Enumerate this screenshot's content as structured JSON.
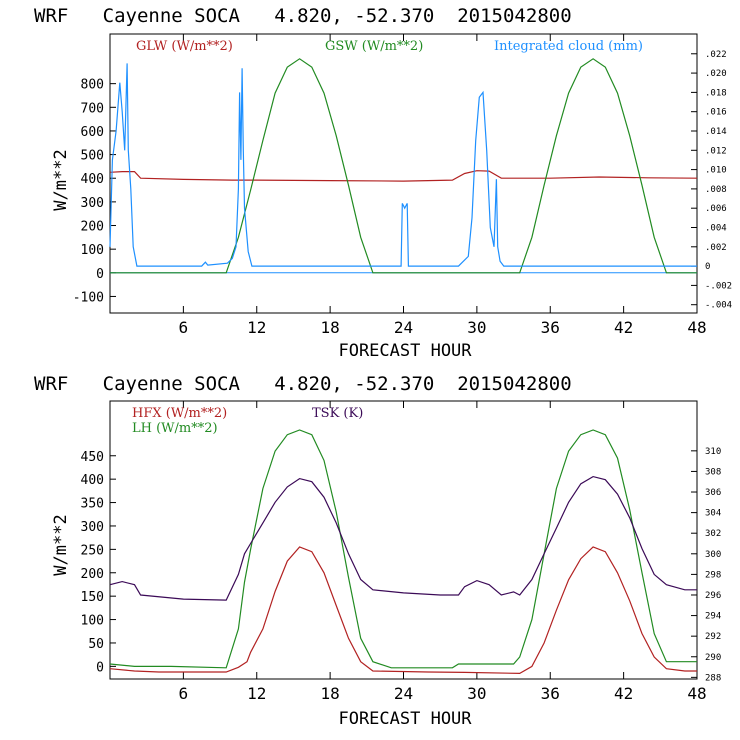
{
  "chart_data": [
    {
      "type": "line",
      "title": "WRF   Cayenne SOCA   4.820, -52.370  2015042800",
      "xlabel": "FORECAST HOUR",
      "ylabel": "W/m**2",
      "xlim": [
        0,
        48
      ],
      "ylim": [
        -170,
        1010
      ],
      "y2lim": [
        -0.00486,
        0.02405
      ],
      "xticks": [
        "6",
        "12",
        "18",
        "24",
        "30",
        "36",
        "42",
        "48"
      ],
      "yticks": [
        "-100",
        "0",
        "100",
        "200",
        "300",
        "400",
        "500",
        "600",
        "700",
        "800"
      ],
      "y2ticks": [
        "-.004",
        "-.002",
        "0",
        ".002",
        ".004",
        ".006",
        ".008",
        ".010",
        ".012",
        ".014",
        ".016",
        ".018",
        ".020",
        ".022"
      ],
      "series": [
        {
          "name": "GLW (W/m**2)",
          "color": "#b22222",
          "axis": "left",
          "points": [
            [
              0,
              425
            ],
            [
              1,
              428
            ],
            [
              2,
              428
            ],
            [
              2.5,
              400
            ],
            [
              6,
              395
            ],
            [
              10,
              392
            ],
            [
              12,
              392
            ],
            [
              18,
              390
            ],
            [
              24,
              388
            ],
            [
              28,
              392
            ],
            [
              29,
              420
            ],
            [
              30,
              432
            ],
            [
              31,
              430
            ],
            [
              32,
              400
            ],
            [
              36,
              400
            ],
            [
              40,
              405
            ],
            [
              44,
              402
            ],
            [
              48,
              400
            ]
          ]
        },
        {
          "name": "GSW (W/m**2)",
          "color": "#228b22",
          "axis": "left",
          "points": [
            [
              0,
              0
            ],
            [
              9.5,
              0
            ],
            [
              10.5,
              150
            ],
            [
              11.5,
              350
            ],
            [
              12.5,
              560
            ],
            [
              13.5,
              760
            ],
            [
              14.5,
              870
            ],
            [
              15.5,
              905
            ],
            [
              16.5,
              870
            ],
            [
              17.5,
              760
            ],
            [
              18.5,
              580
            ],
            [
              19.5,
              370
            ],
            [
              20.5,
              150
            ],
            [
              21.5,
              0
            ],
            [
              33.5,
              0
            ],
            [
              34.5,
              150
            ],
            [
              35.5,
              370
            ],
            [
              36.5,
              580
            ],
            [
              37.5,
              760
            ],
            [
              38.5,
              870
            ],
            [
              39.5,
              905
            ],
            [
              40.5,
              870
            ],
            [
              41.5,
              760
            ],
            [
              42.5,
              580
            ],
            [
              43.5,
              370
            ],
            [
              44.5,
              150
            ],
            [
              45.5,
              0
            ],
            [
              48,
              0
            ]
          ]
        },
        {
          "name": "Integrated cloud (mm)",
          "color": "#1e90ff",
          "axis": "right",
          "points": [
            [
              0,
              0.002
            ],
            [
              0.2,
              0.011
            ],
            [
              0.5,
              0.014
            ],
            [
              0.8,
              0.019
            ],
            [
              1.0,
              0.016
            ],
            [
              1.2,
              0.012
            ],
            [
              1.4,
              0.021
            ],
            [
              1.5,
              0.012
            ],
            [
              1.7,
              0.008
            ],
            [
              1.9,
              0.002
            ],
            [
              2.2,
              0
            ],
            [
              7.5,
              0
            ],
            [
              7.8,
              0.0004
            ],
            [
              8.0,
              0.0001
            ],
            [
              9.6,
              0.0003
            ],
            [
              10.0,
              0.0008
            ],
            [
              10.3,
              0.002
            ],
            [
              10.5,
              0.008
            ],
            [
              10.6,
              0.018
            ],
            [
              10.7,
              0.011
            ],
            [
              10.8,
              0.0205
            ],
            [
              10.9,
              0.012
            ],
            [
              11.0,
              0.006
            ],
            [
              11.3,
              0.0015
            ],
            [
              11.6,
              0
            ],
            [
              23.8,
              0
            ],
            [
              23.9,
              0.0065
            ],
            [
              24.1,
              0.006
            ],
            [
              24.3,
              0.0065
            ],
            [
              24.4,
              0
            ],
            [
              28.5,
              0
            ],
            [
              29.3,
              0.001
            ],
            [
              29.6,
              0.005
            ],
            [
              29.9,
              0.013
            ],
            [
              30.2,
              0.0175
            ],
            [
              30.5,
              0.018
            ],
            [
              30.8,
              0.012
            ],
            [
              31.1,
              0.004
            ],
            [
              31.4,
              0.002
            ],
            [
              31.6,
              0.009
            ],
            [
              31.7,
              0.002
            ],
            [
              31.9,
              0.0005
            ],
            [
              32.2,
              0
            ],
            [
              48,
              0
            ]
          ]
        }
      ]
    },
    {
      "type": "line",
      "title": "WRF   Cayenne SOCA   4.820, -52.370  2015042800",
      "xlabel": "FORECAST HOUR",
      "ylabel": "W/m**2",
      "xlim": [
        0,
        48
      ],
      "ylim": [
        -27,
        567
      ],
      "y2lim": [
        287.84,
        314.84
      ],
      "xticks": [
        "6",
        "12",
        "18",
        "24",
        "30",
        "36",
        "42",
        "48"
      ],
      "yticks": [
        "0",
        "50",
        "100",
        "150",
        "200",
        "250",
        "300",
        "350",
        "400",
        "450"
      ],
      "y2ticks": [
        "288",
        "290",
        "292",
        "294",
        "296",
        "298",
        "300",
        "302",
        "304",
        "306",
        "308",
        "310"
      ],
      "series": [
        {
          "name": "HFX (W/m**2)",
          "color": "#b22222",
          "axis": "left",
          "points": [
            [
              0,
              -5
            ],
            [
              2,
              -10
            ],
            [
              4,
              -12
            ],
            [
              9.5,
              -12
            ],
            [
              10.5,
              -2
            ],
            [
              11.2,
              10
            ],
            [
              11.5,
              30
            ],
            [
              12.5,
              80
            ],
            [
              13.5,
              160
            ],
            [
              14.5,
              225
            ],
            [
              15.5,
              255
            ],
            [
              16.5,
              245
            ],
            [
              17.5,
              200
            ],
            [
              18.5,
              130
            ],
            [
              19.5,
              60
            ],
            [
              20.5,
              10
            ],
            [
              21.5,
              -10
            ],
            [
              26,
              -12
            ],
            [
              29,
              -13
            ],
            [
              33.5,
              -15
            ],
            [
              34.5,
              0
            ],
            [
              35.5,
              50
            ],
            [
              36.5,
              120
            ],
            [
              37.5,
              185
            ],
            [
              38.5,
              230
            ],
            [
              39.5,
              255
            ],
            [
              40.5,
              245
            ],
            [
              41.5,
              200
            ],
            [
              42.5,
              140
            ],
            [
              43.5,
              70
            ],
            [
              44.5,
              20
            ],
            [
              45.5,
              -5
            ],
            [
              47,
              -10
            ],
            [
              48,
              -10
            ]
          ]
        },
        {
          "name": "LH (W/m**2)",
          "color": "#228b22",
          "axis": "left",
          "points": [
            [
              0,
              5
            ],
            [
              2,
              0
            ],
            [
              5,
              0
            ],
            [
              9.5,
              -3
            ],
            [
              10.5,
              80
            ],
            [
              11.0,
              180
            ],
            [
              11.5,
              250
            ],
            [
              12.5,
              380
            ],
            [
              13.5,
              460
            ],
            [
              14.5,
              495
            ],
            [
              15.5,
              505
            ],
            [
              16.5,
              495
            ],
            [
              17.5,
              440
            ],
            [
              18.5,
              330
            ],
            [
              19.5,
              190
            ],
            [
              20.5,
              60
            ],
            [
              21.5,
              10
            ],
            [
              23,
              -3
            ],
            [
              28,
              -3
            ],
            [
              28.5,
              5
            ],
            [
              33,
              5
            ],
            [
              33.5,
              20
            ],
            [
              34.5,
              100
            ],
            [
              35.5,
              240
            ],
            [
              36.5,
              380
            ],
            [
              37.5,
              460
            ],
            [
              38.5,
              495
            ],
            [
              39.5,
              505
            ],
            [
              40.5,
              495
            ],
            [
              41.5,
              445
            ],
            [
              42.5,
              335
            ],
            [
              43.5,
              200
            ],
            [
              44.5,
              70
            ],
            [
              45.5,
              10
            ],
            [
              48,
              10
            ]
          ]
        },
        {
          "name": "TSK (K)",
          "color": "#3b0a57",
          "axis": "right",
          "points": [
            [
              0,
              297.0
            ],
            [
              1,
              297.3
            ],
            [
              2,
              297.0
            ],
            [
              2.5,
              296.0
            ],
            [
              6,
              295.6
            ],
            [
              9.5,
              295.5
            ],
            [
              10.5,
              298.0
            ],
            [
              11,
              300.0
            ],
            [
              11.5,
              301.0
            ],
            [
              12.5,
              303.0
            ],
            [
              13.5,
              305.0
            ],
            [
              14.5,
              306.5
            ],
            [
              15.5,
              307.3
            ],
            [
              16.5,
              307.0
            ],
            [
              17.5,
              305.5
            ],
            [
              18.5,
              303.0
            ],
            [
              19.5,
              300.0
            ],
            [
              20.5,
              297.5
            ],
            [
              21.5,
              296.5
            ],
            [
              24,
              296.2
            ],
            [
              27,
              296.0
            ],
            [
              28.5,
              296.0
            ],
            [
              29,
              296.8
            ],
            [
              30,
              297.4
            ],
            [
              31,
              297.0
            ],
            [
              32,
              296.0
            ],
            [
              33,
              296.3
            ],
            [
              33.5,
              296.0
            ],
            [
              34.5,
              297.5
            ],
            [
              35.5,
              300.0
            ],
            [
              36.5,
              302.5
            ],
            [
              37.5,
              305.0
            ],
            [
              38.5,
              306.8
            ],
            [
              39.5,
              307.5
            ],
            [
              40.5,
              307.2
            ],
            [
              41.5,
              305.8
            ],
            [
              42.5,
              303.5
            ],
            [
              43.5,
              300.5
            ],
            [
              44.5,
              298.0
            ],
            [
              45.5,
              297.0
            ],
            [
              47,
              296.5
            ],
            [
              48,
              296.5
            ]
          ]
        }
      ]
    }
  ]
}
